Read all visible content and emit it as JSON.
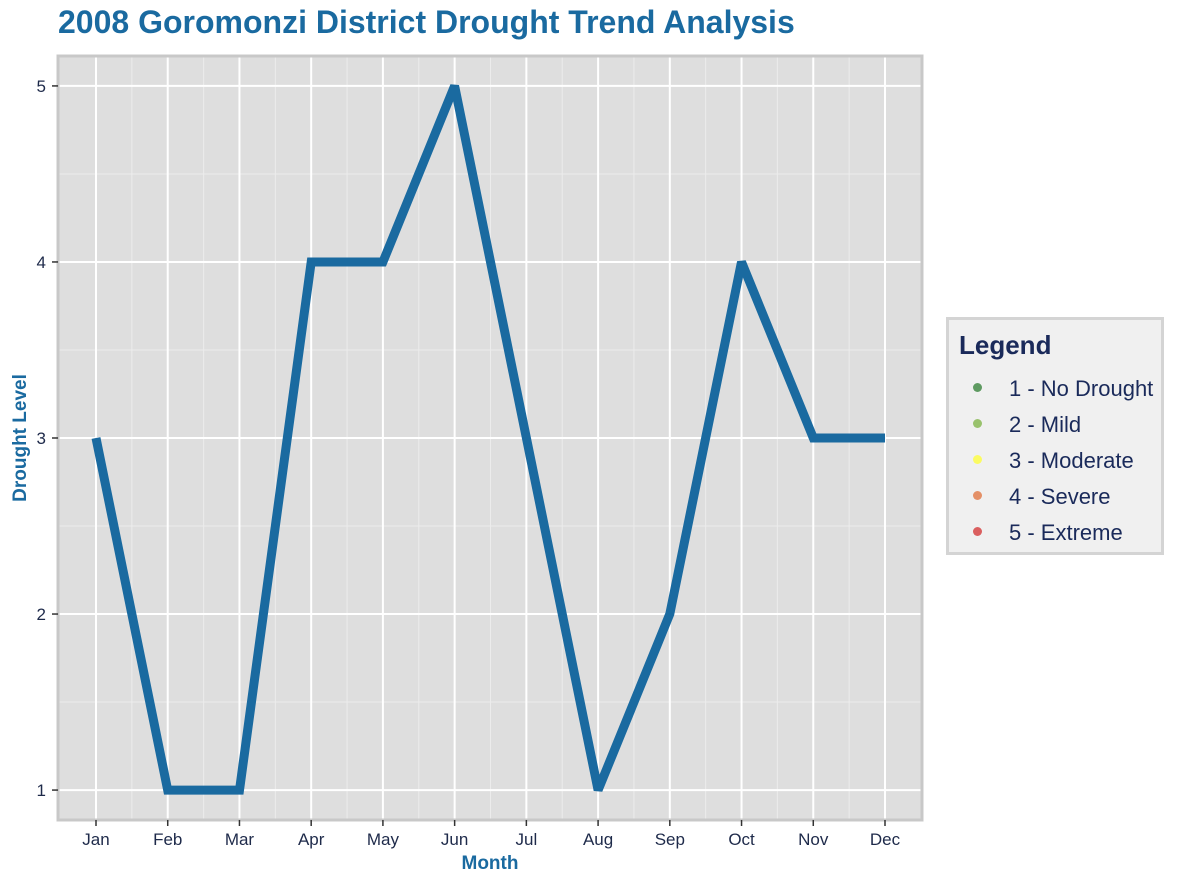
{
  "chart_data": {
    "type": "line",
    "title": "2008 Goromonzi District Drought Trend Analysis",
    "xlabel": "Month",
    "ylabel": "Drought Level",
    "categories": [
      "Jan",
      "Feb",
      "Mar",
      "Apr",
      "May",
      "Jun",
      "Jul",
      "Aug",
      "Sep",
      "Oct",
      "Nov",
      "Dec"
    ],
    "series": [
      {
        "values": [
          3,
          1,
          1,
          4,
          4,
          5,
          3,
          1,
          2,
          4,
          3,
          3
        ],
        "color": "#1a6aa0"
      }
    ],
    "y_ticks": [
      "1",
      "2",
      "3",
      "4",
      "5"
    ],
    "ylim": [
      0.83,
      5.17
    ],
    "grid": true,
    "legend": {
      "title": "Legend",
      "placement": "right",
      "items": [
        {
          "label": "1 - No Drought",
          "color": "#2e7d32"
        },
        {
          "label": "2 - Mild",
          "color": "#7cb342"
        },
        {
          "label": "3 - Moderate",
          "color": "#ffff33"
        },
        {
          "label": "4 - Severe",
          "color": "#e0703a"
        },
        {
          "label": "5 - Extreme",
          "color": "#d32f2f"
        }
      ]
    },
    "colors": {
      "panel_background": "#dedede",
      "panel_border": "#c8c8c8",
      "grid_major": "#ffffff",
      "grid_minor": "#ececec",
      "accent": "#1a6aa0"
    }
  }
}
